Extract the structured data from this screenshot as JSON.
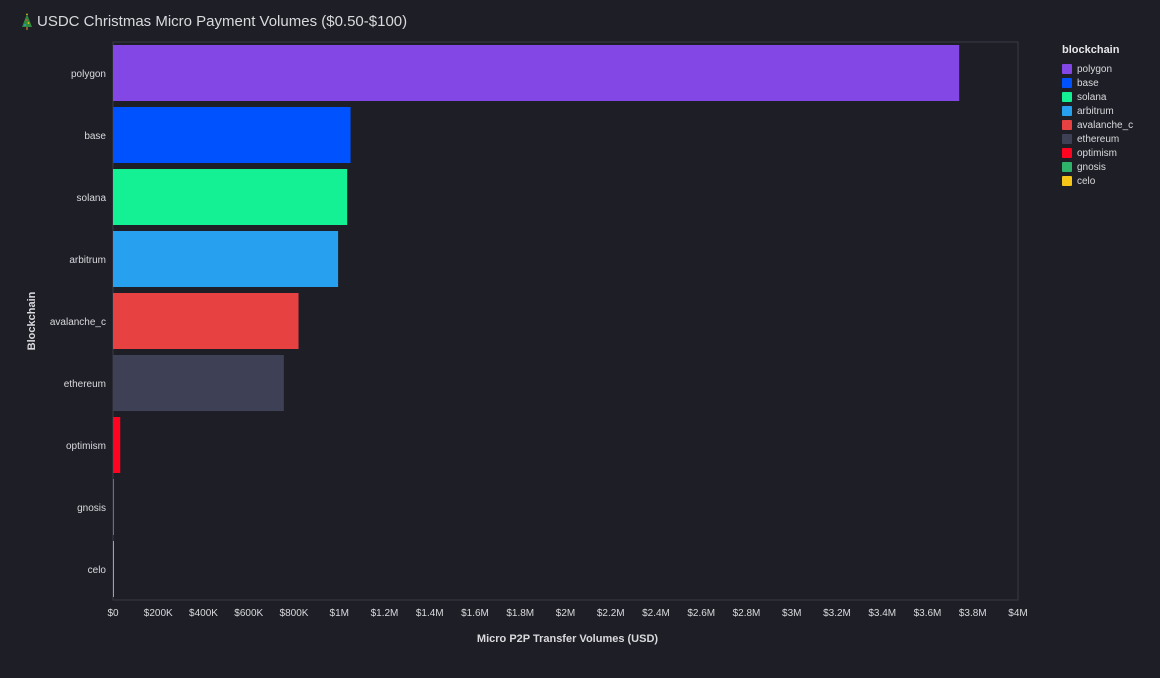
{
  "title": "USDC Christmas Micro Payment Volumes ($0.50-$100)",
  "title_icon": "christmas-tree-icon",
  "chart_data": {
    "type": "bar",
    "orientation": "horizontal",
    "categories": [
      "polygon",
      "base",
      "solana",
      "arbitrum",
      "avalanche_c",
      "ethereum",
      "optimism",
      "gnosis",
      "celo"
    ],
    "values": [
      3740000,
      1050000,
      1035000,
      995000,
      820000,
      755000,
      32000,
      3000,
      1500
    ],
    "colors": [
      "#8247e5",
      "#0052ff",
      "#14f195",
      "#28a0f0",
      "#e84142",
      "#3e4156",
      "#ff0420",
      "#2fb36b",
      "#f5c518"
    ],
    "xlabel": "Micro P2P Transfer Volumes (USD)",
    "ylabel": "Blockchain",
    "xlim": [
      0,
      4000000
    ],
    "x_ticks": [
      0,
      200000,
      400000,
      600000,
      800000,
      1000000,
      1200000,
      1400000,
      1600000,
      1800000,
      2000000,
      2200000,
      2400000,
      2600000,
      2800000,
      3000000,
      3200000,
      3400000,
      3600000,
      3800000,
      4000000
    ],
    "x_tick_labels": [
      "$0",
      "$200K",
      "$400K",
      "$600K",
      "$800K",
      "$1M",
      "$1.2M",
      "$1.4M",
      "$1.6M",
      "$1.8M",
      "$2M",
      "$2.2M",
      "$2.4M",
      "$2.6M",
      "$2.8M",
      "$3M",
      "$3.2M",
      "$3.4M",
      "$3.6M",
      "$3.8M",
      "$4M"
    ],
    "grid": false,
    "legend_title": "blockchain",
    "legend_position": "right"
  }
}
